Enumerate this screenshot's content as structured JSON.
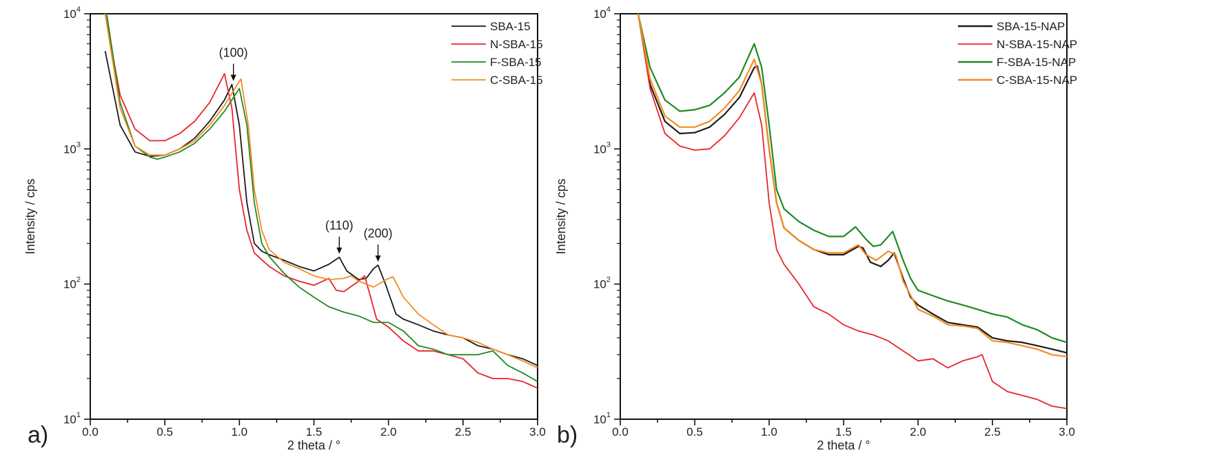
{
  "chart_data": [
    {
      "type": "line",
      "panel_label": "a)",
      "xlabel": "2 theta / °",
      "ylabel": "Intensity / cps",
      "xlim": [
        0,
        3
      ],
      "ylim": [
        10,
        10000
      ],
      "yscale": "log",
      "xticks": [
        "0.0",
        "0.5",
        "1.0",
        "1.5",
        "2.0",
        "2.5",
        "3.0"
      ],
      "yticks": [
        {
          "base": "10",
          "exp": "1"
        },
        {
          "base": "10",
          "exp": "2"
        },
        {
          "base": "10",
          "exp": "3"
        },
        {
          "base": "10",
          "exp": "4"
        }
      ],
      "legend_position": "top-right",
      "annotations": [
        {
          "text": "(100)",
          "x": 0.96,
          "y": 3000
        },
        {
          "text": "(110)",
          "x": 1.67,
          "y": 158
        },
        {
          "text": "(200)",
          "x": 1.93,
          "y": 138
        }
      ],
      "series": [
        {
          "name": "SBA-15",
          "color": "#1a1a1a",
          "x": [
            0.1,
            0.2,
            0.3,
            0.4,
            0.5,
            0.6,
            0.7,
            0.8,
            0.9,
            0.95,
            1.0,
            1.05,
            1.1,
            1.15,
            1.2,
            1.3,
            1.4,
            1.5,
            1.6,
            1.67,
            1.72,
            1.8,
            1.85,
            1.9,
            1.93,
            1.98,
            2.05,
            2.1,
            2.2,
            2.3,
            2.4,
            2.5,
            2.6,
            2.7,
            2.8,
            2.9,
            3.0
          ],
          "y": [
            5300,
            1500,
            950,
            880,
            900,
            1000,
            1200,
            1600,
            2300,
            3000,
            1500,
            400,
            200,
            175,
            165,
            150,
            135,
            125,
            140,
            158,
            125,
            108,
            110,
            130,
            138,
            100,
            60,
            55,
            50,
            45,
            42,
            40,
            35,
            33,
            30,
            28,
            25
          ]
        },
        {
          "name": "N-SBA-15",
          "color": "#e8232a",
          "x": [
            0.1,
            0.2,
            0.3,
            0.4,
            0.5,
            0.6,
            0.7,
            0.8,
            0.9,
            0.95,
            1.0,
            1.05,
            1.1,
            1.2,
            1.3,
            1.4,
            1.5,
            1.6,
            1.65,
            1.7,
            1.8,
            1.84,
            1.88,
            1.92,
            2.0,
            2.1,
            2.2,
            2.3,
            2.4,
            2.5,
            2.6,
            2.7,
            2.8,
            2.9,
            3.0
          ],
          "y": [
            10000,
            2500,
            1400,
            1150,
            1150,
            1300,
            1600,
            2200,
            3600,
            2000,
            500,
            250,
            170,
            135,
            115,
            105,
            98,
            110,
            90,
            88,
            105,
            115,
            80,
            55,
            48,
            38,
            32,
            32,
            30,
            28,
            22,
            20,
            20,
            19,
            17
          ]
        },
        {
          "name": "F-SBA-15",
          "color": "#1e8a22",
          "x": [
            0.11,
            0.2,
            0.3,
            0.4,
            0.45,
            0.5,
            0.6,
            0.7,
            0.8,
            0.9,
            1.0,
            1.05,
            1.1,
            1.15,
            1.2,
            1.3,
            1.4,
            1.5,
            1.6,
            1.7,
            1.8,
            1.9,
            2.0,
            2.1,
            2.2,
            2.3,
            2.4,
            2.5,
            2.6,
            2.7,
            2.8,
            2.9,
            3.0
          ],
          "y": [
            10000,
            2200,
            1050,
            870,
            840,
            870,
            950,
            1100,
            1400,
            1900,
            2800,
            1500,
            400,
            200,
            160,
            120,
            95,
            80,
            68,
            62,
            58,
            52,
            52,
            45,
            35,
            33,
            30,
            30,
            30,
            32,
            25,
            22,
            19
          ]
        },
        {
          "name": "C-SBA-15",
          "color": "#f58b1f",
          "x": [
            0.1,
            0.2,
            0.3,
            0.4,
            0.5,
            0.6,
            0.7,
            0.8,
            0.9,
            1.01,
            1.06,
            1.1,
            1.15,
            1.2,
            1.3,
            1.4,
            1.5,
            1.6,
            1.7,
            1.75,
            1.8,
            1.9,
            2.0,
            2.03,
            2.1,
            2.2,
            2.3,
            2.4,
            2.5,
            2.6,
            2.7,
            2.8,
            2.9,
            3.0
          ],
          "y": [
            10000,
            2000,
            1050,
            900,
            900,
            1000,
            1150,
            1500,
            2100,
            3300,
            1500,
            500,
            250,
            180,
            145,
            130,
            115,
            108,
            110,
            115,
            105,
            95,
            110,
            113,
            80,
            60,
            50,
            42,
            40,
            37,
            33,
            30,
            27,
            24
          ]
        }
      ]
    },
    {
      "type": "line",
      "panel_label": "b)",
      "xlabel": "2 theta / °",
      "ylabel": "Intensity / cps",
      "xlim": [
        0,
        3
      ],
      "ylim": [
        10,
        10000
      ],
      "yscale": "log",
      "xticks": [
        "0.0",
        "0.5",
        "1.0",
        "1.5",
        "2.0",
        "2.5",
        "3.0"
      ],
      "yticks": [
        {
          "base": "10",
          "exp": "1"
        },
        {
          "base": "10",
          "exp": "2"
        },
        {
          "base": "10",
          "exp": "3"
        },
        {
          "base": "10",
          "exp": "4"
        }
      ],
      "legend_position": "top-right",
      "annotations": [],
      "series": [
        {
          "name": "SBA-15-NAP",
          "color": "#1a1a1a",
          "x": [
            0.12,
            0.2,
            0.3,
            0.4,
            0.5,
            0.6,
            0.7,
            0.8,
            0.9,
            0.92,
            0.95,
            1.0,
            1.05,
            1.1,
            1.2,
            1.3,
            1.4,
            1.5,
            1.6,
            1.63,
            1.68,
            1.75,
            1.8,
            1.84,
            1.9,
            1.95,
            2.0,
            2.1,
            2.2,
            2.3,
            2.4,
            2.5,
            2.6,
            2.7,
            2.8,
            2.9,
            3.0
          ],
          "y": [
            10000,
            3000,
            1600,
            1300,
            1320,
            1450,
            1800,
            2400,
            4000,
            4100,
            3000,
            1000,
            400,
            260,
            210,
            180,
            165,
            165,
            190,
            185,
            145,
            135,
            150,
            170,
            110,
            80,
            70,
            60,
            52,
            50,
            48,
            40,
            38,
            37,
            35,
            33,
            31
          ]
        },
        {
          "name": "N-SBA-15-NAP",
          "color": "#e8232a",
          "x": [
            0.12,
            0.2,
            0.3,
            0.4,
            0.5,
            0.6,
            0.7,
            0.8,
            0.9,
            0.95,
            1.0,
            1.05,
            1.1,
            1.2,
            1.3,
            1.4,
            1.5,
            1.6,
            1.7,
            1.8,
            1.9,
            2.0,
            2.1,
            2.2,
            2.3,
            2.4,
            2.43,
            2.5,
            2.6,
            2.7,
            2.8,
            2.9,
            3.0
          ],
          "y": [
            10000,
            2800,
            1300,
            1050,
            980,
            1000,
            1250,
            1700,
            2600,
            1500,
            400,
            180,
            140,
            100,
            68,
            60,
            50,
            45,
            42,
            38,
            32,
            27,
            28,
            24,
            27,
            29,
            30,
            19,
            16,
            15,
            14,
            12.5,
            12
          ]
        },
        {
          "name": "F-SBA-15-NAP",
          "color": "#1e8a22",
          "x": [
            0.12,
            0.2,
            0.3,
            0.4,
            0.5,
            0.6,
            0.7,
            0.8,
            0.9,
            0.95,
            1.0,
            1.05,
            1.1,
            1.2,
            1.3,
            1.4,
            1.5,
            1.58,
            1.65,
            1.7,
            1.75,
            1.83,
            1.9,
            1.95,
            2.0,
            2.1,
            2.2,
            2.3,
            2.4,
            2.5,
            2.6,
            2.7,
            2.8,
            2.9,
            3.0
          ],
          "y": [
            10000,
            4000,
            2300,
            1900,
            1950,
            2100,
            2600,
            3400,
            6000,
            4000,
            1500,
            500,
            360,
            290,
            250,
            225,
            225,
            265,
            215,
            190,
            195,
            245,
            150,
            110,
            90,
            82,
            75,
            70,
            65,
            60,
            57,
            50,
            46,
            40,
            37
          ]
        },
        {
          "name": "C-SBA-15-NAP",
          "color": "#f58b1f",
          "x": [
            0.12,
            0.2,
            0.3,
            0.4,
            0.5,
            0.6,
            0.7,
            0.8,
            0.9,
            0.95,
            1.0,
            1.05,
            1.1,
            1.2,
            1.3,
            1.4,
            1.5,
            1.6,
            1.65,
            1.72,
            1.8,
            1.85,
            1.9,
            2.0,
            2.1,
            2.2,
            2.3,
            2.4,
            2.5,
            2.6,
            2.7,
            2.8,
            2.9,
            3.0
          ],
          "y": [
            10000,
            3300,
            1750,
            1450,
            1450,
            1600,
            2000,
            2700,
            4600,
            3000,
            1000,
            400,
            260,
            210,
            180,
            170,
            170,
            195,
            165,
            150,
            175,
            165,
            105,
            65,
            58,
            50,
            49,
            47,
            38,
            37,
            35,
            33,
            30,
            29
          ]
        }
      ]
    }
  ]
}
